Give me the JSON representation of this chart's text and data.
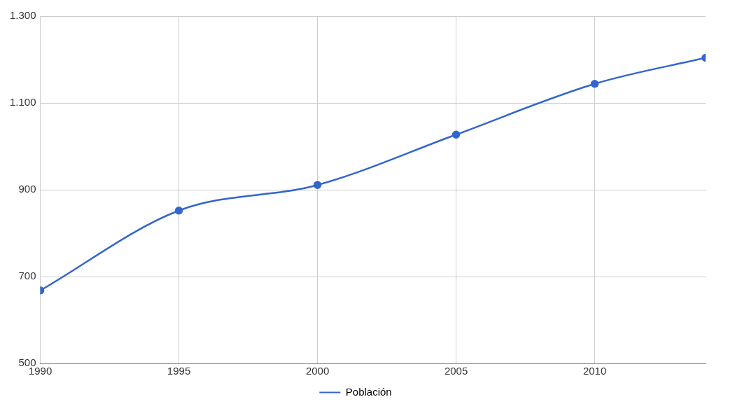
{
  "chart_data": {
    "type": "line",
    "x": [
      1990,
      1995,
      2000,
      2005,
      2010,
      2014
    ],
    "series": [
      {
        "name": "Población",
        "color": "#3366cc",
        "values": [
          668,
          852,
          911,
          1027,
          1144,
          1204
        ]
      }
    ],
    "xlim": [
      1990,
      2014
    ],
    "xticks": [
      1990,
      1995,
      2000,
      2005,
      2010
    ],
    "ylim": [
      500,
      1300
    ],
    "yticks": [
      {
        "value": 500,
        "label": "500"
      },
      {
        "value": 700,
        "label": "700"
      },
      {
        "value": 900,
        "label": "900"
      },
      {
        "value": 1100,
        "label": "1.100"
      },
      {
        "value": 1300,
        "label": "1.300"
      }
    ],
    "grid": true,
    "legend": "bottom",
    "marker": "circle",
    "line_style": "solid"
  }
}
